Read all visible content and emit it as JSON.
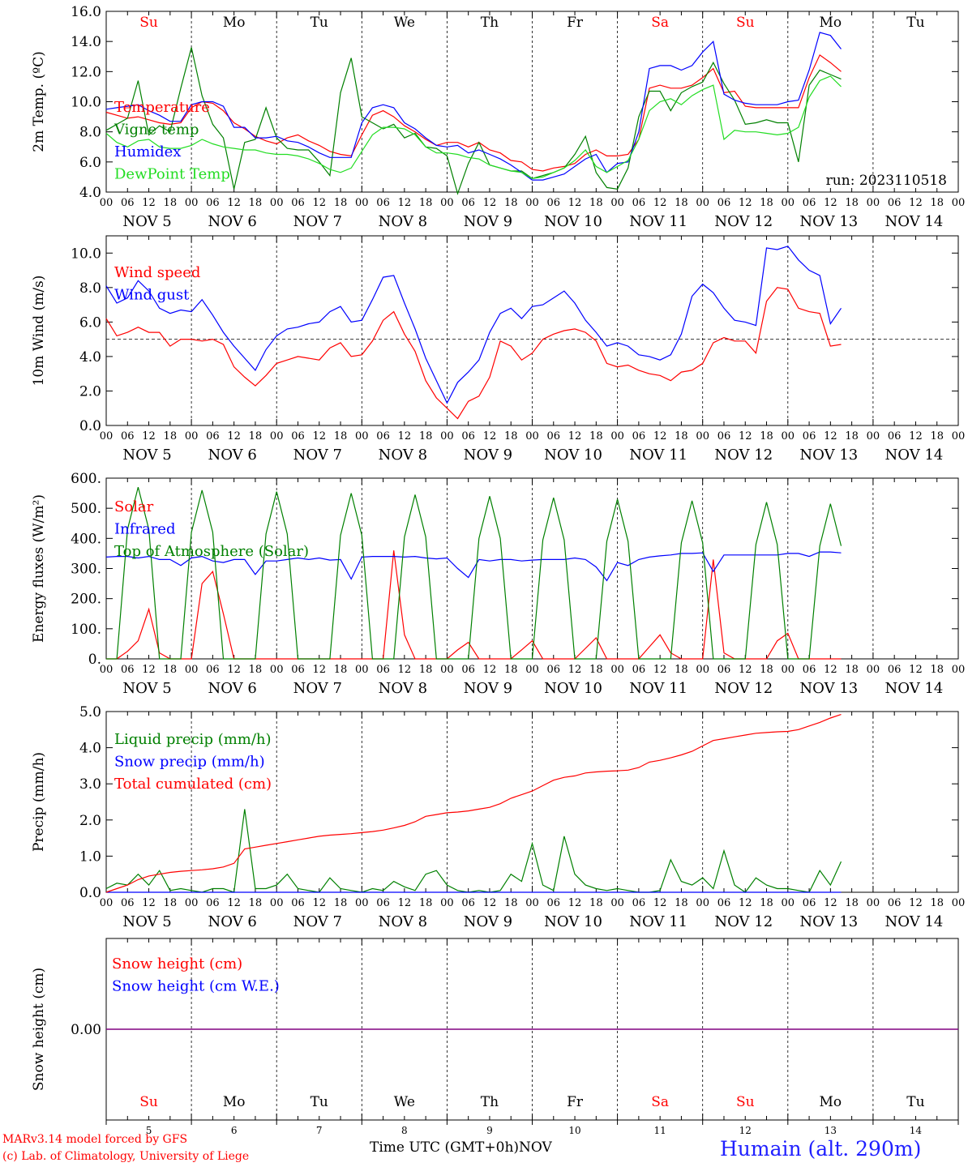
{
  "meta": {
    "run_label": "run: 2023110518",
    "station": "Humain (alt. 290m)",
    "credit_model": "MARv3.14 model forced by GFS",
    "credit_lab": "(c) Lab. of Climatology, University of Liege",
    "time_axis_label": "Time UTC (GMT+0h)",
    "month_label": "NOV"
  },
  "colors": {
    "red": "#ff0000",
    "green": "#008000",
    "blue": "#0000ff",
    "lightgreen": "#22dd22",
    "purple": "#800080",
    "grid": "#000000"
  },
  "axis": {
    "days": [
      "Su",
      "Mo",
      "Tu",
      "We",
      "Th",
      "Fr",
      "Sa",
      "Su",
      "Mo",
      "Tu"
    ],
    "weekend_days": [
      0,
      6,
      7
    ],
    "dates": [
      "NOV  5",
      "NOV  6",
      "NOV  7",
      "NOV  8",
      "NOV  9",
      "NOV 10",
      "NOV 11",
      "NOV 12",
      "NOV 13",
      "NOV 14"
    ],
    "day_numbers": [
      "5",
      "6",
      "7",
      "8",
      "9",
      "10",
      "11",
      "12",
      "13",
      "14"
    ],
    "hour_ticks": [
      "00",
      "06",
      "12",
      "18"
    ],
    "final_tick": "00"
  },
  "chart_data": [
    {
      "type": "line",
      "ylabel": "2m Temp. (ºC)",
      "ylim": [
        4.0,
        16.0
      ],
      "yticks": [
        "4.0",
        "6.0",
        "8.0",
        "10.0",
        "12.0",
        "14.0",
        "16.0"
      ],
      "top_day_labels": true,
      "x": {
        "start": 0,
        "step_hours": 3,
        "unit": "hours since NOV 5 00 UTC"
      },
      "series": [
        {
          "name": "Temperature",
          "color": "#ff0000",
          "values": [
            9.3,
            9.1,
            8.9,
            9.0,
            8.8,
            8.6,
            8.5,
            8.6,
            9.6,
            10.0,
            9.9,
            9.4,
            8.6,
            8.2,
            7.7,
            7.4,
            7.2,
            7.6,
            7.8,
            7.4,
            7.1,
            6.7,
            6.5,
            6.4,
            7.8,
            9.1,
            9.4,
            9.0,
            8.4,
            8.0,
            7.5,
            7.1,
            7.3,
            7.3,
            7.0,
            7.3,
            6.8,
            6.6,
            6.1,
            6.0,
            5.5,
            5.4,
            5.6,
            5.7,
            5.9,
            6.5,
            6.8,
            6.4,
            6.4,
            6.5,
            7.5,
            10.9,
            11.1,
            10.9,
            10.9,
            11.1,
            11.6,
            12.2,
            10.6,
            10.7,
            9.7,
            9.6,
            9.6,
            9.6,
            9.6,
            9.6,
            11.6,
            13.1,
            12.6,
            12.0
          ]
        },
        {
          "name": "Vigne temp",
          "color": "#008000",
          "values": [
            8.1,
            8.5,
            8.9,
            11.4,
            7.8,
            8.4,
            8.0,
            10.9,
            13.6,
            10.4,
            8.5,
            7.6,
            4.2,
            7.3,
            7.5,
            9.6,
            7.6,
            6.9,
            6.8,
            6.8,
            6.0,
            5.1,
            10.6,
            12.9,
            9.0,
            8.6,
            8.2,
            8.5,
            7.6,
            7.9,
            7.0,
            6.9,
            6.4,
            3.9,
            5.9,
            7.3,
            5.8,
            5.6,
            5.4,
            5.4,
            4.9,
            5.1,
            5.3,
            5.6,
            6.5,
            7.7,
            5.3,
            4.3,
            4.2,
            5.6,
            9.0,
            10.7,
            10.7,
            9.4,
            10.6,
            11.0,
            11.3,
            12.6,
            11.2,
            10.1,
            8.5,
            8.6,
            8.8,
            8.6,
            8.6,
            6.0,
            11.1,
            12.1,
            11.8,
            11.5
          ]
        },
        {
          "name": "Humidex",
          "color": "#0000ff",
          "values": [
            9.5,
            9.6,
            9.7,
            9.8,
            9.4,
            9.1,
            8.7,
            8.7,
            9.8,
            10.0,
            10.0,
            9.7,
            8.3,
            8.3,
            7.6,
            7.6,
            7.7,
            7.4,
            7.3,
            7.0,
            6.6,
            6.3,
            6.3,
            6.3,
            8.6,
            9.6,
            9.8,
            9.6,
            8.6,
            8.2,
            7.6,
            7.1,
            7.0,
            7.1,
            6.6,
            6.8,
            6.5,
            6.2,
            5.8,
            5.3,
            4.8,
            4.8,
            5.0,
            5.2,
            5.7,
            6.2,
            6.5,
            5.3,
            5.9,
            6.0,
            8.0,
            12.2,
            12.4,
            12.4,
            12.1,
            12.4,
            13.3,
            14.0,
            10.5,
            10.1,
            9.9,
            9.8,
            9.8,
            9.8,
            10.0,
            10.1,
            12.1,
            14.6,
            14.4,
            13.5
          ]
        },
        {
          "name": "DewPoint Temp",
          "color": "#22dd22",
          "values": [
            7.9,
            7.3,
            7.0,
            7.4,
            7.5,
            7.0,
            6.9,
            6.9,
            7.1,
            7.5,
            7.2,
            7.0,
            6.9,
            6.8,
            6.8,
            6.6,
            6.5,
            6.5,
            6.4,
            6.2,
            5.9,
            5.5,
            5.3,
            5.6,
            6.7,
            7.8,
            8.3,
            8.3,
            8.2,
            7.8,
            7.0,
            6.6,
            6.6,
            6.5,
            6.3,
            6.2,
            5.8,
            5.6,
            5.4,
            5.3,
            4.9,
            5.0,
            5.3,
            5.6,
            6.1,
            6.8,
            5.7,
            5.3,
            5.7,
            6.1,
            7.5,
            9.4,
            10.0,
            10.2,
            9.8,
            10.4,
            10.8,
            11.1,
            7.5,
            8.1,
            8.0,
            8.0,
            7.9,
            7.8,
            7.9,
            8.3,
            10.3,
            11.4,
            11.7,
            11.0
          ]
        }
      ]
    },
    {
      "type": "line",
      "ylabel": "10m Wind (m/s)",
      "ylim": [
        0.0,
        11.0
      ],
      "yticks": [
        "0.0",
        "2.0",
        "4.0",
        "6.0",
        "8.0",
        "10.0"
      ],
      "ref_line": 5.0,
      "x": {
        "start": 0,
        "step_hours": 3,
        "unit": "hours since NOV 5 00 UTC"
      },
      "series": [
        {
          "name": "Wind speed",
          "color": "#ff0000",
          "values": [
            6.2,
            5.2,
            5.4,
            5.7,
            5.4,
            5.4,
            4.6,
            5.0,
            5.0,
            4.9,
            5.0,
            4.7,
            3.4,
            2.8,
            2.3,
            2.9,
            3.6,
            3.8,
            4.0,
            3.9,
            3.8,
            4.5,
            4.8,
            4.0,
            4.1,
            4.9,
            6.1,
            6.6,
            5.3,
            4.3,
            2.6,
            1.6,
            1.0,
            0.4,
            1.4,
            1.7,
            2.8,
            4.9,
            4.6,
            3.8,
            4.2,
            5.0,
            5.3,
            5.5,
            5.6,
            5.4,
            4.9,
            3.6,
            3.4,
            3.5,
            3.2,
            3.0,
            2.9,
            2.6,
            3.1,
            3.2,
            3.6,
            4.8,
            5.1,
            4.9,
            4.9,
            4.2,
            7.2,
            8.0,
            7.9,
            6.8,
            6.6,
            6.5,
            4.6,
            4.7
          ]
        },
        {
          "name": "Wind gust",
          "color": "#0000ff",
          "values": [
            8.1,
            7.1,
            7.4,
            8.4,
            7.8,
            6.8,
            6.5,
            6.7,
            6.6,
            7.3,
            6.4,
            5.4,
            4.6,
            3.9,
            3.2,
            4.4,
            5.2,
            5.6,
            5.7,
            5.9,
            6.0,
            6.6,
            6.9,
            6.0,
            6.1,
            7.3,
            8.6,
            8.7,
            7.1,
            5.6,
            3.9,
            2.6,
            1.3,
            2.5,
            3.1,
            3.8,
            5.4,
            6.5,
            6.8,
            6.2,
            6.9,
            7.0,
            7.4,
            7.8,
            7.1,
            6.1,
            5.4,
            4.6,
            4.8,
            4.6,
            4.1,
            4.0,
            3.8,
            4.1,
            5.3,
            7.5,
            8.2,
            7.7,
            6.8,
            6.1,
            6.0,
            5.8,
            10.3,
            10.2,
            10.4,
            9.6,
            9.0,
            8.7,
            5.9,
            6.8
          ]
        }
      ]
    },
    {
      "type": "line",
      "ylabel": "Energy fluxes (W/m²)",
      "ylim": [
        0,
        600
      ],
      "yticks": [
        "0.",
        "100.",
        "200.",
        "300.",
        "400.",
        "500.",
        "600."
      ],
      "x": {
        "start": 0,
        "step_hours": 3,
        "unit": "hours since NOV 5 00 UTC"
      },
      "series": [
        {
          "name": "Solar",
          "color": "#ff0000",
          "values": [
            0,
            0,
            25,
            60,
            165,
            20,
            0,
            0,
            0,
            250,
            290,
            150,
            0,
            0,
            0,
            0,
            0,
            0,
            0,
            0,
            0,
            0,
            0,
            0,
            0,
            0,
            0,
            360,
            80,
            0,
            0,
            0,
            0,
            30,
            55,
            0,
            0,
            0,
            0,
            30,
            60,
            0,
            0,
            0,
            0,
            35,
            70,
            0,
            0,
            0,
            0,
            40,
            80,
            20,
            0,
            0,
            0,
            330,
            20,
            0,
            0,
            0,
            0,
            60,
            85,
            0,
            0,
            0,
            0,
            0
          ]
        },
        {
          "name": "Infrared",
          "color": "#0000ff",
          "values": [
            338,
            340,
            340,
            335,
            340,
            330,
            330,
            310,
            335,
            340,
            325,
            320,
            330,
            330,
            280,
            325,
            325,
            330,
            335,
            330,
            335,
            328,
            330,
            265,
            338,
            340,
            340,
            340,
            338,
            340,
            335,
            332,
            335,
            300,
            270,
            330,
            325,
            330,
            330,
            325,
            328,
            330,
            330,
            330,
            335,
            330,
            305,
            260,
            320,
            310,
            330,
            338,
            342,
            345,
            350,
            350,
            352,
            290,
            345,
            345,
            345,
            345,
            345,
            345,
            350,
            350,
            340,
            355,
            355,
            352
          ]
        },
        {
          "name": "Top of Atmosphere (Solar)",
          "color": "#008000",
          "values": [
            0,
            0,
            430,
            570,
            430,
            0,
            0,
            0,
            420,
            560,
            420,
            0,
            0,
            0,
            0,
            415,
            555,
            415,
            0,
            0,
            0,
            0,
            410,
            550,
            410,
            0,
            0,
            0,
            405,
            545,
            405,
            0,
            0,
            0,
            0,
            400,
            540,
            400,
            0,
            0,
            0,
            395,
            535,
            395,
            0,
            0,
            0,
            390,
            530,
            390,
            0,
            0,
            0,
            0,
            385,
            525,
            385,
            0,
            0,
            0,
            0,
            380,
            520,
            380,
            0,
            0,
            0,
            375,
            515,
            375
          ]
        }
      ]
    },
    {
      "type": "line",
      "ylabel": "Precip (mm/h)",
      "ylim": [
        0.0,
        5.0
      ],
      "yticks": [
        "0.0",
        "1.0",
        "2.0",
        "3.0",
        "4.0",
        "5.0"
      ],
      "x": {
        "start": 0,
        "step_hours": 3,
        "unit": "hours since NOV 5 00 UTC"
      },
      "series": [
        {
          "name": "Liquid precip (mm/h)",
          "color": "#008000",
          "values": [
            0.1,
            0.25,
            0.2,
            0.5,
            0.2,
            0.6,
            0.05,
            0.1,
            0.05,
            0.0,
            0.1,
            0.1,
            0.0,
            2.3,
            0.1,
            0.1,
            0.2,
            0.5,
            0.1,
            0.05,
            0.0,
            0.4,
            0.1,
            0.05,
            0.0,
            0.1,
            0.05,
            0.3,
            0.15,
            0.05,
            0.5,
            0.6,
            0.2,
            0.05,
            0.0,
            0.05,
            0.0,
            0.05,
            0.5,
            0.3,
            1.35,
            0.2,
            0.05,
            1.55,
            0.5,
            0.2,
            0.1,
            0.05,
            0.1,
            0.05,
            0.0,
            0.0,
            0.05,
            0.9,
            0.3,
            0.2,
            0.4,
            0.1,
            1.15,
            0.2,
            0.0,
            0.4,
            0.2,
            0.1,
            0.1,
            0.05,
            0.0,
            0.6,
            0.2,
            0.85
          ]
        },
        {
          "name": "Snow precip (mm/h)",
          "color": "#0000ff",
          "values": [
            0,
            0,
            0,
            0,
            0,
            0,
            0,
            0,
            0,
            0,
            0,
            0,
            0,
            0,
            0,
            0,
            0,
            0,
            0,
            0,
            0,
            0,
            0,
            0,
            0,
            0,
            0,
            0,
            0,
            0,
            0,
            0,
            0,
            0,
            0,
            0,
            0,
            0,
            0,
            0,
            0,
            0,
            0,
            0,
            0,
            0,
            0,
            0,
            0,
            0,
            0,
            0,
            0,
            0,
            0,
            0,
            0,
            0,
            0,
            0,
            0,
            0,
            0,
            0,
            0,
            0,
            0,
            0,
            0,
            0
          ]
        },
        {
          "name": "Total cumulated (cm)",
          "color": "#ff0000",
          "values": [
            0.0,
            0.1,
            0.2,
            0.35,
            0.45,
            0.5,
            0.55,
            0.58,
            0.6,
            0.62,
            0.65,
            0.7,
            0.8,
            1.2,
            1.25,
            1.3,
            1.35,
            1.4,
            1.45,
            1.5,
            1.55,
            1.58,
            1.6,
            1.62,
            1.65,
            1.68,
            1.72,
            1.78,
            1.85,
            1.95,
            2.1,
            2.15,
            2.2,
            2.22,
            2.25,
            2.3,
            2.35,
            2.45,
            2.6,
            2.7,
            2.8,
            2.95,
            3.1,
            3.18,
            3.22,
            3.3,
            3.33,
            3.35,
            3.36,
            3.38,
            3.45,
            3.6,
            3.65,
            3.72,
            3.8,
            3.9,
            4.05,
            4.2,
            4.25,
            4.3,
            4.35,
            4.4,
            4.42,
            4.44,
            4.45,
            4.5,
            4.6,
            4.7,
            4.82,
            4.92
          ]
        }
      ]
    },
    {
      "type": "line",
      "ylabel": "Snow height (cm)",
      "ylim": [
        -1.0,
        1.0
      ],
      "yticks": [
        "0.00"
      ],
      "bottom_day_labels": true,
      "x": {
        "start": 0,
        "step_hours": 3,
        "unit": "hours since NOV 5 00 UTC"
      },
      "series": [
        {
          "name": "Snow height (cm)",
          "color": "#ff0000",
          "values": [
            0,
            0
          ]
        },
        {
          "name": "Snow height (cm W.E.)",
          "color": "#0000ff",
          "values": [
            0,
            0
          ]
        }
      ]
    }
  ]
}
